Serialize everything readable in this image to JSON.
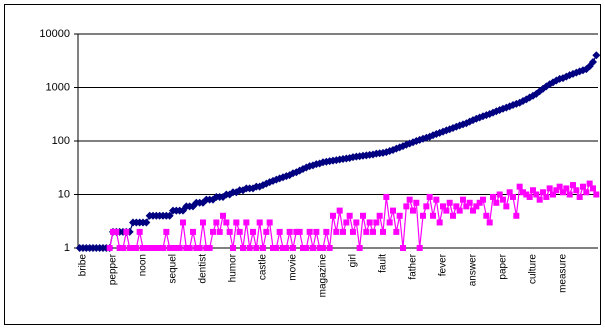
{
  "chart_data": {
    "type": "line",
    "log_scale": true,
    "grid": true,
    "categories": [
      null,
      "bribe",
      null,
      null,
      null,
      null,
      null,
      null,
      null,
      null,
      "pepper",
      null,
      null,
      null,
      null,
      null,
      null,
      null,
      null,
      "noon",
      null,
      null,
      null,
      null,
      null,
      null,
      null,
      null,
      "sequel",
      null,
      null,
      null,
      null,
      null,
      null,
      null,
      null,
      "dentist",
      null,
      null,
      null,
      null,
      null,
      null,
      null,
      null,
      "humor",
      null,
      null,
      null,
      null,
      null,
      null,
      null,
      null,
      "castle",
      null,
      null,
      null,
      null,
      null,
      null,
      null,
      null,
      "movie",
      null,
      null,
      null,
      null,
      null,
      null,
      null,
      null,
      "magazine",
      null,
      null,
      null,
      null,
      null,
      null,
      null,
      null,
      "girl",
      null,
      null,
      null,
      null,
      null,
      null,
      null,
      null,
      "fault",
      null,
      null,
      null,
      null,
      null,
      null,
      null,
      null,
      "father",
      null,
      null,
      null,
      null,
      null,
      null,
      null,
      null,
      "fever",
      null,
      null,
      null,
      null,
      null,
      null,
      null,
      null,
      "answer",
      null,
      null,
      null,
      null,
      null,
      null,
      null,
      null,
      "paper",
      null,
      null,
      null,
      null,
      null,
      null,
      null,
      null,
      "culture",
      null,
      null,
      null,
      null,
      null,
      null,
      null,
      null,
      "measure",
      null,
      null,
      null,
      null,
      null,
      null,
      null,
      null,
      null,
      null
    ],
    "series": [
      {
        "color": "#000080",
        "marker": "diamond",
        "values": [
          1,
          1,
          1,
          1,
          1,
          1,
          1,
          1,
          1,
          1,
          2,
          2,
          2,
          2,
          2,
          2,
          3,
          3,
          3,
          3,
          3,
          4,
          4,
          4,
          4,
          4,
          4,
          4,
          5,
          5,
          5,
          5,
          6,
          6,
          6,
          7,
          7,
          7,
          8,
          8,
          8,
          9,
          9,
          9,
          10,
          10,
          11,
          11,
          12,
          12,
          13,
          13,
          13,
          14,
          14,
          15,
          16,
          17,
          18,
          19,
          20,
          21,
          22,
          23,
          25,
          26,
          28,
          30,
          32,
          34,
          35,
          37,
          38,
          40,
          41,
          42,
          43,
          44,
          45,
          46,
          47,
          48,
          50,
          51,
          52,
          53,
          54,
          55,
          56,
          58,
          59,
          60,
          62,
          65,
          68,
          72,
          76,
          80,
          85,
          90,
          95,
          100,
          105,
          110,
          115,
          120,
          128,
          135,
          142,
          150,
          158,
          166,
          175,
          185,
          195,
          205,
          215,
          230,
          245,
          260,
          275,
          290,
          305,
          320,
          340,
          360,
          380,
          400,
          420,
          445,
          470,
          495,
          520,
          560,
          600,
          650,
          700,
          760,
          850,
          950,
          1050,
          1150,
          1250,
          1350,
          1450,
          1500,
          1600,
          1700,
          1800,
          1900,
          2000,
          2100,
          2200,
          2500,
          3000,
          4000
        ]
      },
      {
        "color": "#ff00ff",
        "marker": "square",
        "values": [
          null,
          null,
          null,
          null,
          null,
          null,
          null,
          null,
          null,
          1,
          2,
          2,
          1,
          1,
          2,
          1,
          1,
          1,
          2,
          1,
          1,
          1,
          1,
          1,
          1,
          1,
          2,
          1,
          1,
          1,
          1,
          3,
          1,
          1,
          2,
          1,
          1,
          3,
          1,
          1,
          2,
          3,
          2,
          4,
          3,
          2,
          1,
          3,
          2,
          1,
          3,
          1,
          2,
          1,
          3,
          1,
          2,
          3,
          1,
          1,
          2,
          1,
          1,
          2,
          1,
          2,
          2,
          1,
          1,
          2,
          1,
          2,
          1,
          1,
          2,
          1,
          4,
          2,
          5,
          2,
          3,
          4,
          2,
          3,
          1,
          4,
          2,
          3,
          2,
          3,
          4,
          2,
          9,
          3,
          5,
          2,
          4,
          1,
          6,
          8,
          5,
          7,
          1,
          4,
          6,
          9,
          4,
          8,
          3,
          6,
          5,
          7,
          4,
          6,
          5,
          8,
          6,
          7,
          5,
          6,
          7,
          8,
          4,
          3,
          9,
          7,
          10,
          8,
          6,
          11,
          9,
          4,
          14,
          11,
          10,
          9,
          12,
          10,
          8,
          11,
          9,
          13,
          10,
          12,
          14,
          11,
          13,
          10,
          15,
          12,
          9,
          14,
          11,
          16,
          13,
          10
        ]
      }
    ],
    "ylim": [
      1,
      10000
    ],
    "yticks": [
      1,
      10,
      100,
      1000,
      10000
    ]
  }
}
